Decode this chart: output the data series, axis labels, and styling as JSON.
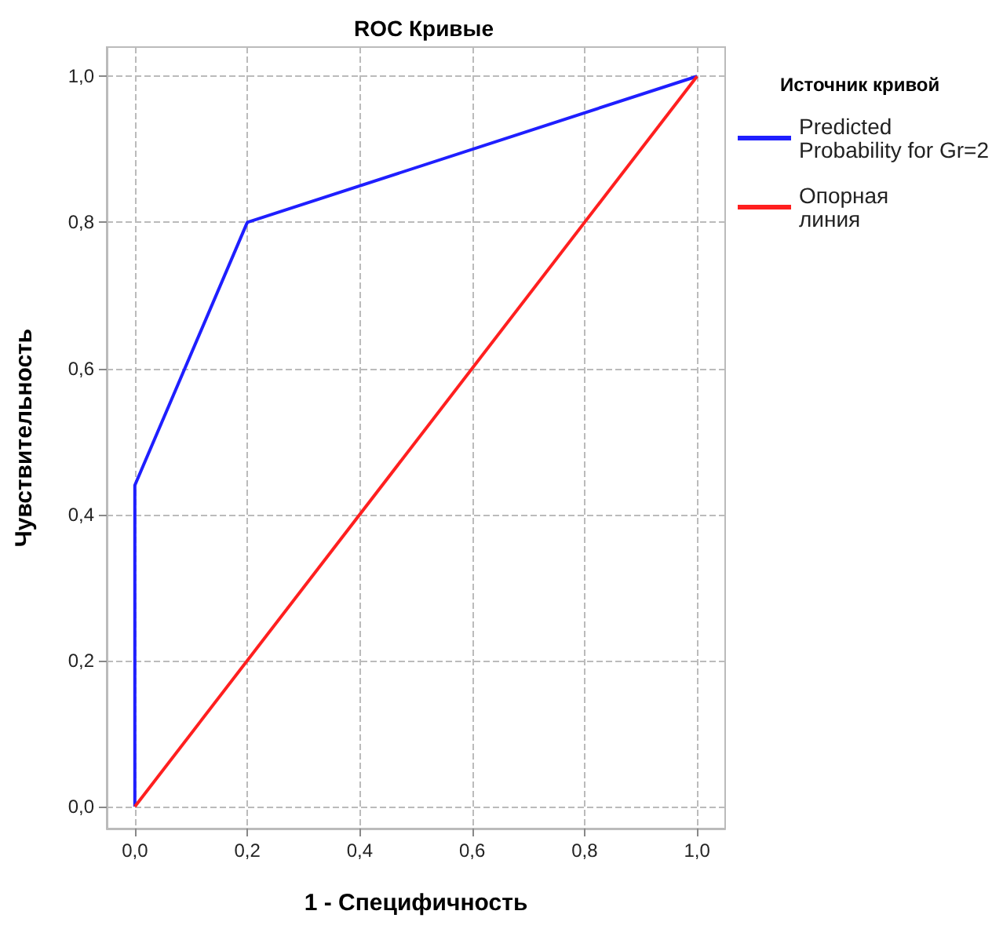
{
  "chart_data": {
    "type": "line",
    "title": "ROC Кривые",
    "xlabel": "1 - Специфичность",
    "ylabel": "Чувствительность",
    "legend_title": "Источник кривой",
    "series": [
      {
        "name": "Predicted Probability for Gr=2",
        "color": "#1f1fff",
        "x": [
          0,
          0,
          0.2,
          1
        ],
        "values": [
          0,
          0.44,
          0.8,
          1
        ]
      },
      {
        "name": "Опорная линия",
        "color": "#ff1f1f",
        "x": [
          0,
          1
        ],
        "values": [
          0,
          1
        ]
      }
    ],
    "xlim": [
      -0.05,
      1.05
    ],
    "ylim": [
      -0.03,
      1.04
    ],
    "xticks": [
      {
        "value": 0,
        "label": "0,0"
      },
      {
        "value": 0.2,
        "label": "0,2"
      },
      {
        "value": 0.4,
        "label": "0,4"
      },
      {
        "value": 0.6,
        "label": "0,6"
      },
      {
        "value": 0.8,
        "label": "0,8"
      },
      {
        "value": 1,
        "label": "1,0"
      }
    ],
    "yticks": [
      {
        "value": 0,
        "label": "0,0"
      },
      {
        "value": 0.2,
        "label": "0,2"
      },
      {
        "value": 0.4,
        "label": "0,4"
      },
      {
        "value": 0.6,
        "label": "0,6"
      },
      {
        "value": 0.8,
        "label": "0,8"
      },
      {
        "value": 1,
        "label": "1,0"
      }
    ],
    "grid": true,
    "legend": "right",
    "marker": "none",
    "line_style": "solid"
  }
}
